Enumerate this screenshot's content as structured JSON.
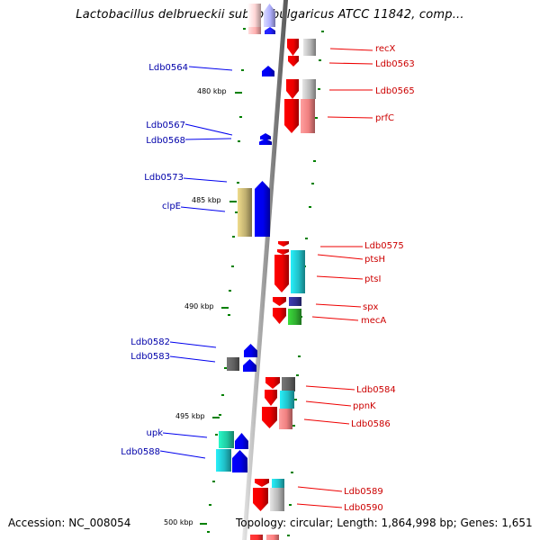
{
  "title": "Lactobacillus delbrueckii subsp. bulgaricus ATCC 11842, comp...",
  "footer": {
    "accession": "Accession: NC_008054",
    "topology": "Topology: circular; Length: 1,864,998 bp; Genes: 1,651"
  },
  "scale_labels": [
    "480 kbp",
    "485 kbp",
    "490 kbp",
    "495 kbp",
    "500 kbp"
  ],
  "colors": {
    "forward_strand": "#0000ee",
    "reverse_strand": "#ee0000",
    "forward_label": "#0000aa",
    "reverse_label": "#cc0000",
    "backbone": "#888888",
    "tick": "#008000"
  },
  "genes_forward": [
    "Ldb0564",
    "Ldb0567",
    "Ldb0568",
    "Ldb0573",
    "clpE",
    "Ldb0582",
    "Ldb0583",
    "upk",
    "Ldb0588"
  ],
  "genes_reverse": [
    "recX",
    "Ldb0563",
    "Ldb0565",
    "prfC",
    "Ldb0575",
    "ptsH",
    "ptsI",
    "spx",
    "mecA",
    "Ldb0584",
    "ppnK",
    "Ldb0586",
    "Ldb0589",
    "Ldb0590"
  ]
}
